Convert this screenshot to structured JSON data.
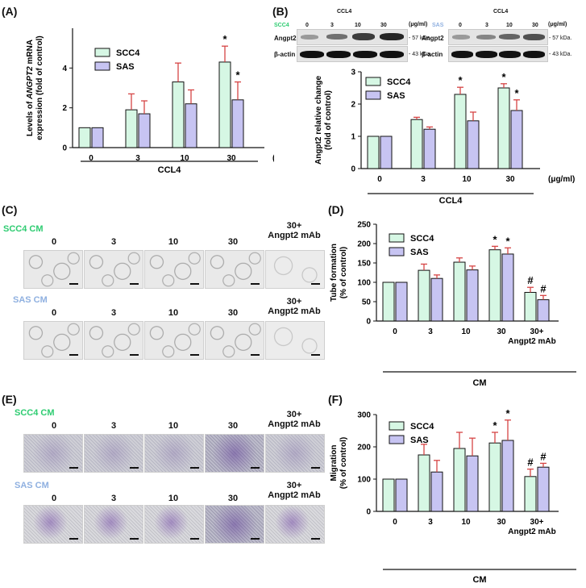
{
  "colors": {
    "scc4": "#d6f7e4",
    "sas": "#c7c4f2",
    "scc4_label": "#2ecc71",
    "sas_label": "#8fb0e0",
    "err": "#d64545"
  },
  "panels": {
    "A": {
      "label": "(A)"
    },
    "B": {
      "label": "(B)"
    },
    "C": {
      "label": "(C)"
    },
    "D": {
      "label": "(D)"
    },
    "E": {
      "label": "(E)"
    },
    "F": {
      "label": "(F)"
    }
  },
  "blot": {
    "scc4_title": "SCC4",
    "sas_title": "SAS",
    "ccl4": "CCL4",
    "unit": "(μg/ml)",
    "doses": [
      "0",
      "3",
      "10",
      "30"
    ],
    "angpt2": "Angpt2",
    "bactin": "β-actin",
    "kda57": "- 57 kDa.",
    "kda43": "- 43 kDa."
  },
  "micro": {
    "scc4_row": "SCC4 CM",
    "sas_row": "SAS CM",
    "cols": [
      "0",
      "3",
      "10",
      "30",
      "30+\nAngpt2 mAb"
    ]
  },
  "chart_data": [
    {
      "id": "A",
      "type": "bar",
      "ylabel_lines": [
        "Levels of ANGPT2 mRNA",
        "expression (fold of control)"
      ],
      "categories": [
        "0",
        "3",
        "10",
        "30"
      ],
      "unit": "(μg/ml)",
      "group_label": "CCL4",
      "ylim": [
        0,
        6
      ],
      "yticks": [
        0,
        2,
        4
      ],
      "series": [
        {
          "name": "SCC4",
          "values": [
            1.0,
            1.9,
            3.3,
            4.3
          ],
          "errors": [
            0,
            0.8,
            0.95,
            0.8
          ],
          "marks": [
            "",
            "",
            "",
            "*"
          ]
        },
        {
          "name": "SAS",
          "values": [
            1.0,
            1.7,
            2.2,
            2.4
          ],
          "errors": [
            0,
            0.65,
            0.7,
            0.9
          ],
          "marks": [
            "",
            "",
            "",
            "*"
          ]
        }
      ]
    },
    {
      "id": "B",
      "type": "bar",
      "ylabel_lines": [
        "Angpt2 relative change",
        "(fold of control)"
      ],
      "categories": [
        "0",
        "3",
        "10",
        "30"
      ],
      "unit": "(μg/ml)",
      "group_label": "CCL4",
      "ylim": [
        0,
        3
      ],
      "yticks": [
        0,
        1,
        2,
        3
      ],
      "series": [
        {
          "name": "SCC4",
          "values": [
            1.0,
            1.52,
            2.3,
            2.5
          ],
          "errors": [
            0,
            0.07,
            0.22,
            0.13
          ],
          "marks": [
            "",
            "",
            "*",
            "*"
          ]
        },
        {
          "name": "SAS",
          "values": [
            1.0,
            1.22,
            1.48,
            1.8
          ],
          "errors": [
            0,
            0.07,
            0.27,
            0.33
          ],
          "marks": [
            "",
            "",
            "",
            "*"
          ]
        }
      ]
    },
    {
      "id": "D",
      "type": "bar",
      "ylabel_lines": [
        "Tube formation",
        "(% of control)"
      ],
      "categories": [
        "0",
        "3",
        "10",
        "30",
        "30+"
      ],
      "extra_label": "Angpt2 mAb",
      "group_label": "CM",
      "ylim": [
        0,
        250
      ],
      "yticks": [
        0,
        50,
        100,
        150,
        200,
        250
      ],
      "series": [
        {
          "name": "SCC4",
          "values": [
            100,
            131,
            152,
            184,
            74
          ],
          "errors": [
            0,
            16,
            11,
            9,
            13
          ],
          "marks": [
            "",
            "",
            "",
            "*",
            "#"
          ]
        },
        {
          "name": "SAS",
          "values": [
            100,
            110,
            132,
            173,
            55
          ],
          "errors": [
            0,
            9,
            10,
            16,
            11
          ],
          "marks": [
            "",
            "",
            "",
            "*",
            "#"
          ]
        }
      ]
    },
    {
      "id": "F",
      "type": "bar",
      "ylabel_lines": [
        "Migration",
        "(% of control)"
      ],
      "categories": [
        "0",
        "3",
        "10",
        "30",
        "30+"
      ],
      "extra_label": "Angpt2 mAb",
      "group_label": "CM",
      "ylim": [
        0,
        300
      ],
      "yticks": [
        0,
        100,
        200,
        300
      ],
      "series": [
        {
          "name": "SCC4",
          "values": [
            100,
            175,
            195,
            212,
            108
          ],
          "errors": [
            0,
            33,
            50,
            33,
            23
          ],
          "marks": [
            "",
            "",
            "",
            "*",
            "#"
          ]
        },
        {
          "name": "SAS",
          "values": [
            100,
            122,
            172,
            220,
            137
          ],
          "errors": [
            0,
            36,
            55,
            63,
            12
          ],
          "marks": [
            "",
            "",
            "",
            "*",
            "#"
          ]
        }
      ]
    }
  ]
}
